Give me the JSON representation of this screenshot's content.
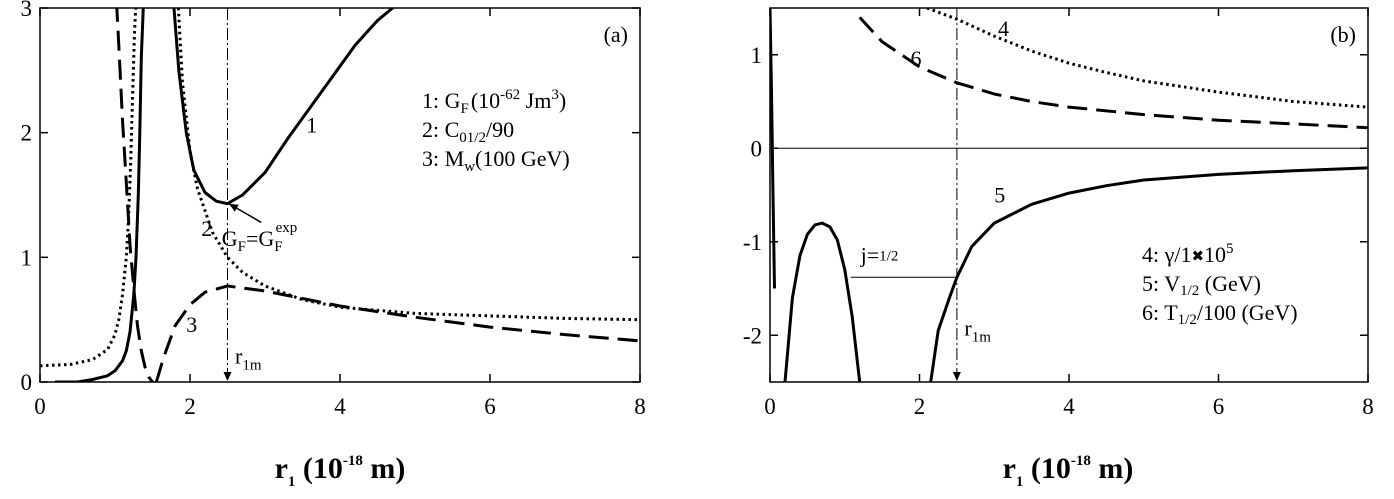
{
  "chart_data": [
    {
      "type": "line",
      "panel_label": "(a)",
      "xlabel": {
        "main": "r",
        "sub": "1",
        "rest": " (10",
        "sup": "-18",
        "unit": " m)"
      },
      "xlim": [
        0,
        8
      ],
      "ylim": [
        0,
        3
      ],
      "xticks": [
        "0",
        "2",
        "4",
        "6",
        "8"
      ],
      "yticks": [
        "0",
        "1",
        "2",
        "3"
      ],
      "legend": [
        {
          "id": "1",
          "text": "1: G",
          "sub": "F",
          "rest": "(10",
          "sup": "-62",
          "tail": " Jm",
          "sup2": "3",
          "end": ")"
        },
        {
          "id": "2",
          "text": "2: C",
          "sub": "0",
          "frac": "1/2",
          "tail": "/90"
        },
        {
          "id": "3",
          "text": "3: M",
          "sub": "w",
          "tail": "(100 GeV)"
        }
      ],
      "series": [
        {
          "name": "1",
          "style": "solid",
          "x": [
            1.78,
            1.85,
            1.95,
            2.05,
            2.2,
            2.35,
            2.5,
            2.7,
            3.0,
            3.3,
            3.6,
            3.9,
            4.2,
            4.5,
            4.8
          ],
          "y": [
            3.05,
            2.5,
            2.0,
            1.7,
            1.52,
            1.45,
            1.43,
            1.5,
            1.68,
            1.95,
            2.2,
            2.45,
            2.7,
            2.9,
            3.05
          ]
        },
        {
          "name": "1-left",
          "style": "solid",
          "x": [
            0.2,
            0.5,
            0.7,
            0.9,
            1.0,
            1.1,
            1.15,
            1.2,
            1.25,
            1.28,
            1.31,
            1.33,
            1.35,
            1.38
          ],
          "y": [
            0.0,
            0.0,
            0.02,
            0.05,
            0.09,
            0.17,
            0.25,
            0.4,
            0.7,
            1.0,
            1.5,
            2.0,
            2.6,
            3.05
          ]
        },
        {
          "name": "2",
          "style": "dotted",
          "x": [
            0.0,
            0.4,
            0.7,
            0.9,
            1.0,
            1.05,
            1.1,
            1.15,
            1.18,
            1.21,
            1.24,
            1.26,
            1.28
          ],
          "y": [
            0.13,
            0.14,
            0.18,
            0.26,
            0.38,
            0.5,
            0.7,
            1.0,
            1.3,
            1.8,
            2.4,
            2.8,
            3.05
          ]
        },
        {
          "name": "2-right",
          "style": "dotted",
          "x": [
            1.84,
            1.9,
            2.0,
            2.1,
            2.3,
            2.5,
            2.7,
            3.0,
            3.5,
            4.0,
            5.0,
            6.0,
            7.0,
            8.0
          ],
          "y": [
            3.05,
            2.4,
            1.85,
            1.55,
            1.2,
            1.0,
            0.88,
            0.77,
            0.66,
            0.6,
            0.55,
            0.53,
            0.51,
            0.5
          ]
        },
        {
          "name": "3-left",
          "style": "dashed",
          "x": [
            1.02,
            1.05,
            1.1,
            1.15,
            1.2,
            1.25,
            1.3,
            1.35,
            1.4,
            1.45,
            1.5
          ],
          "y": [
            3.05,
            2.7,
            2.1,
            1.6,
            1.1,
            0.75,
            0.45,
            0.25,
            0.12,
            0.04,
            0.0
          ]
        },
        {
          "name": "3-right",
          "style": "dashed",
          "x": [
            1.55,
            1.65,
            1.8,
            2.0,
            2.2,
            2.5,
            3.0,
            3.5,
            4.0,
            5.0,
            6.0,
            7.0,
            8.0
          ],
          "y": [
            0.0,
            0.2,
            0.45,
            0.62,
            0.72,
            0.77,
            0.73,
            0.67,
            0.61,
            0.52,
            0.44,
            0.38,
            0.33
          ]
        }
      ],
      "curve_labels": [
        {
          "text": "1",
          "x": 3.55,
          "y": 2.0
        },
        {
          "text": "2",
          "x": 2.15,
          "y": 1.17
        },
        {
          "text": "3",
          "x": 1.95,
          "y": 0.4
        }
      ],
      "vline_x": 2.5,
      "annotations": {
        "r1m": {
          "main": "r",
          "sub": "1m",
          "x": 2.52,
          "y": 0.15
        },
        "gf": {
          "a": "G",
          "asub": "F",
          "eq": "=G",
          "bsub": "F",
          "bsup": "exp",
          "x": 2.85,
          "y": 1.22
        },
        "gf_arrow": {
          "from": [
            2.95,
            1.28
          ],
          "to": [
            2.52,
            1.43
          ]
        }
      }
    },
    {
      "type": "line",
      "panel_label": "(b)",
      "xlabel": {
        "main": "r",
        "sub": "1",
        "rest": " (10",
        "sup": "-18",
        "unit": " m)"
      },
      "xlim": [
        0,
        8
      ],
      "ylim": [
        -2.5,
        1.5
      ],
      "xticks": [
        "0",
        "2",
        "4",
        "6",
        "8"
      ],
      "yticks": [
        "-2",
        "-1",
        "0",
        "1"
      ],
      "legend": [
        {
          "id": "4",
          "text": "4: γ/1",
          "times": "✖",
          "tail": "10",
          "sup": "5"
        },
        {
          "id": "5",
          "text": "5: V",
          "frac": "1/2",
          "tail": " (GeV)"
        },
        {
          "id": "6",
          "text": "6: T",
          "frac": "1/2",
          "tail": "/100 (GeV)"
        }
      ],
      "series": [
        {
          "name": "4",
          "style": "dotted",
          "x": [
            2.1,
            2.5,
            3.0,
            3.5,
            4.0,
            4.5,
            5.0,
            6.0,
            7.0,
            8.0
          ],
          "y": [
            1.5,
            1.38,
            1.2,
            1.04,
            0.91,
            0.81,
            0.72,
            0.6,
            0.5,
            0.44
          ]
        },
        {
          "name": "5",
          "style": "solid",
          "x": [
            2.15,
            2.25,
            2.4,
            2.5,
            2.7,
            3.0,
            3.5,
            4.0,
            4.5,
            5.0,
            6.0,
            7.0,
            8.0
          ],
          "y": [
            -2.5,
            -1.95,
            -1.6,
            -1.38,
            -1.05,
            -0.8,
            -0.6,
            -0.48,
            -0.4,
            -0.34,
            -0.28,
            -0.24,
            -0.21
          ]
        },
        {
          "name": "5-hump",
          "style": "solid",
          "x": [
            0.2,
            0.3,
            0.4,
            0.5,
            0.6,
            0.7,
            0.8,
            0.9,
            1.0,
            1.1,
            1.2
          ],
          "y": [
            -2.5,
            -1.6,
            -1.15,
            -0.92,
            -0.82,
            -0.8,
            -0.84,
            -0.98,
            -1.3,
            -1.8,
            -2.5
          ]
        },
        {
          "name": "5-edge",
          "style": "solid",
          "x": [
            0.0,
            0.02,
            0.04,
            0.06
          ],
          "y": [
            1.5,
            0.6,
            -0.5,
            -1.5
          ]
        },
        {
          "name": "6",
          "style": "dashed",
          "x": [
            1.2,
            1.5,
            2.0,
            2.5,
            3.0,
            3.5,
            4.0,
            5.0,
            6.0,
            7.0,
            8.0
          ],
          "y": [
            1.4,
            1.14,
            0.87,
            0.7,
            0.58,
            0.5,
            0.44,
            0.36,
            0.3,
            0.26,
            0.22
          ]
        }
      ],
      "curve_labels": [
        {
          "text": "4",
          "x": 3.05,
          "y": 1.2
        },
        {
          "text": "5",
          "x": 3.0,
          "y": -0.58
        },
        {
          "text": "6",
          "x": 1.88,
          "y": 0.88
        }
      ],
      "vline_x": 2.5,
      "zero_line": true,
      "jline": {
        "x1": 1.08,
        "x2": 2.5,
        "y": -1.38
      },
      "annotations": {
        "r1m": {
          "main": "r",
          "sub": "1m",
          "x": 2.52,
          "y": -2.0
        },
        "j": {
          "text": "j=",
          "frac": "1/2",
          "x": 1.48,
          "y": -1.18
        }
      }
    }
  ]
}
